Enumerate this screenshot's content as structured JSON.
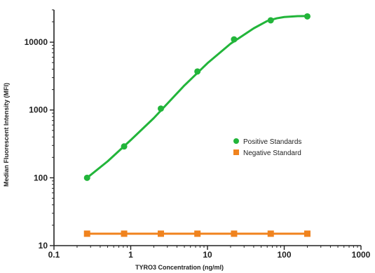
{
  "chart_data": {
    "type": "scatter",
    "title": "",
    "xlabel": "TYRO3 Concentration (ng/ml)",
    "ylabel": "Median Fluorescent Intensity (MFI)",
    "x_scale": "log",
    "y_scale": "log",
    "xlim": [
      0.1,
      1000
    ],
    "ylim": [
      10,
      30000
    ],
    "x_ticks": [
      0.1,
      1,
      10,
      100,
      1000
    ],
    "x_tick_labels": [
      "0.1",
      "1",
      "10",
      "100",
      "1000"
    ],
    "y_ticks": [
      10,
      100,
      1000,
      10000
    ],
    "y_tick_labels": [
      "10",
      "100",
      "1000",
      "10000"
    ],
    "grid": false,
    "legend_position": "right",
    "series": [
      {
        "name": "Positive Standards",
        "color": "#22b53a",
        "marker": "circle",
        "fit": "sigmoidal curve",
        "x": [
          0.27,
          0.82,
          2.47,
          7.4,
          22.2,
          66.7,
          200
        ],
        "y": [
          100,
          290,
          1050,
          3700,
          11000,
          21000,
          24000
        ],
        "fit_curve": {
          "x": [
            0.27,
            0.5,
            1,
            2,
            5,
            10,
            20,
            40,
            60,
            80,
            100,
            150,
            200
          ],
          "y": [
            100,
            175,
            360,
            760,
            2300,
            4900,
            9500,
            16000,
            20500,
            22500,
            23500,
            24200,
            24300
          ]
        }
      },
      {
        "name": "Negative Standard",
        "color": "#f0831e",
        "marker": "square",
        "x": [
          0.27,
          0.82,
          2.47,
          7.4,
          22.2,
          66.7,
          200
        ],
        "y": [
          15,
          15,
          15,
          15,
          15,
          15,
          15
        ]
      }
    ]
  }
}
